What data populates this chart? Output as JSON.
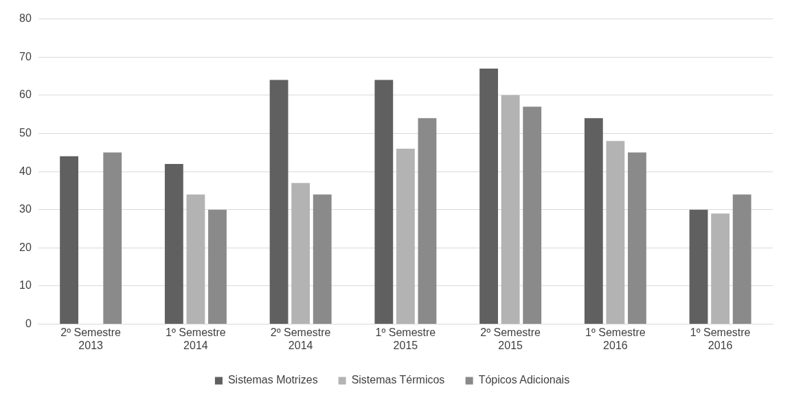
{
  "chart_data": {
    "type": "bar",
    "categories": [
      "2º Semestre 2013",
      "1º Semestre 2014",
      "2º Semestre 2014",
      "1º Semestre 2015",
      "2º Semestre 2015",
      "1º Semestre 2016",
      "1º Semestre 2016"
    ],
    "series": [
      {
        "name": "Sistemas Motrizes",
        "color": "#606060",
        "values": [
          44,
          42,
          64,
          64,
          67,
          54,
          30
        ]
      },
      {
        "name": "Sistemas Térmicos",
        "color": "#b3b3b3",
        "values": [
          null,
          34,
          37,
          46,
          60,
          48,
          29
        ]
      },
      {
        "name": "Tópicos Adicionais",
        "color": "#8a8a8a",
        "values": [
          45,
          30,
          34,
          54,
          57,
          45,
          34
        ]
      }
    ],
    "ylim": [
      0,
      80
    ],
    "yticks": [
      0,
      10,
      20,
      30,
      40,
      50,
      60,
      70,
      80
    ],
    "grid": "y",
    "legend": "bottom"
  }
}
